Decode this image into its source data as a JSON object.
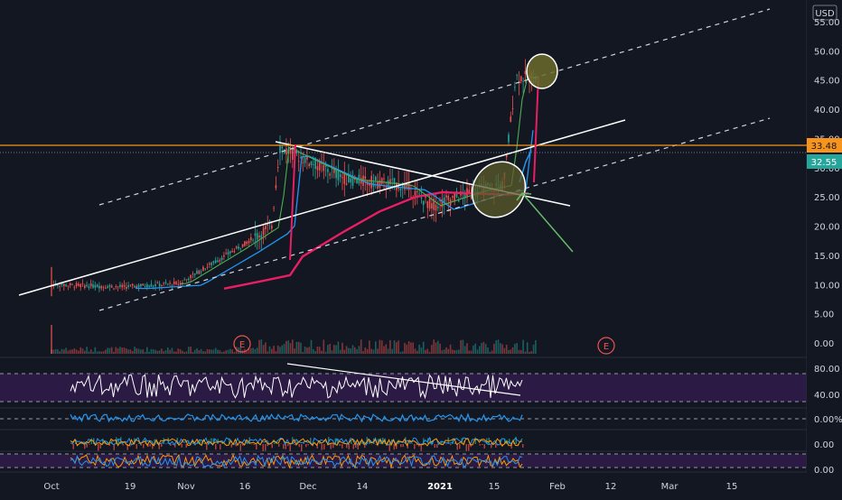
{
  "currency": "USD",
  "price_axis_ticks": [
    "55.00",
    "50.00",
    "45.00",
    "40.00",
    "35.00",
    "30.00",
    "25.00",
    "20.00",
    "15.00",
    "10.00",
    "5.00",
    "0.00"
  ],
  "price_axis_values": [
    55,
    50,
    45,
    40,
    35,
    30,
    25,
    20,
    15,
    10,
    5,
    0
  ],
  "price_markers": [
    {
      "label": "33.48",
      "value": 33.48,
      "color": "#f7941d",
      "text_color": "#131722"
    },
    {
      "label": "32.55",
      "value": 32.55,
      "color": "#26a69a",
      "text_color": "#ffffff"
    }
  ],
  "x_axis_labels": [
    "Oct",
    "19",
    "Nov",
    "16",
    "Dec",
    "14",
    "2021",
    "15",
    "Feb",
    "12",
    "Mar",
    "15"
  ],
  "earnings_badges": [
    "E",
    "E"
  ],
  "indicator_ticks": {
    "rsi": [
      "80.00",
      "40.00"
    ],
    "pct": [
      "0.00%"
    ],
    "macd": [
      "0.00"
    ],
    "stoch": [
      "0.00"
    ]
  },
  "colors": {
    "background": "#131722",
    "up": "#26a69a",
    "down": "#ef5350",
    "ma_long": "#e91e63",
    "ma_mid": "#2196f3",
    "ma_short": "#4caf50",
    "resistance": "#f7941d",
    "trendline": "#ffffff",
    "highlight_circle": "#6b6b2a",
    "arrow": "#66bb6a",
    "rsi_band": "#3e1f5e",
    "pct_line": "#2196f3"
  },
  "chart_data": {
    "type": "candlestick",
    "symbol_currency": "USD",
    "x_range": [
      "2020-10-01",
      "2021-03-25"
    ],
    "y_range": [
      0,
      55
    ],
    "close_approx": [
      {
        "date": "2020-10-01",
        "close": 10.0
      },
      {
        "date": "2020-10-19",
        "close": 9.6
      },
      {
        "date": "2020-11-02",
        "close": 10.2
      },
      {
        "date": "2020-11-16",
        "close": 16.0
      },
      {
        "date": "2020-11-25",
        "close": 20.0
      },
      {
        "date": "2020-11-27",
        "close": 33.5
      },
      {
        "date": "2020-12-14",
        "close": 28.0
      },
      {
        "date": "2020-12-28",
        "close": 27.0
      },
      {
        "date": "2021-01-04",
        "close": 23.5
      },
      {
        "date": "2021-01-15",
        "close": 26.0
      },
      {
        "date": "2021-01-22",
        "close": 27.0
      },
      {
        "date": "2021-01-25",
        "close": 45.5
      }
    ],
    "resistance_level": 33.48,
    "last_price": 32.55,
    "annotations": [
      "ascending channel",
      "symmetrical triangle",
      "breakout circle",
      "target circle"
    ],
    "grid": false
  }
}
